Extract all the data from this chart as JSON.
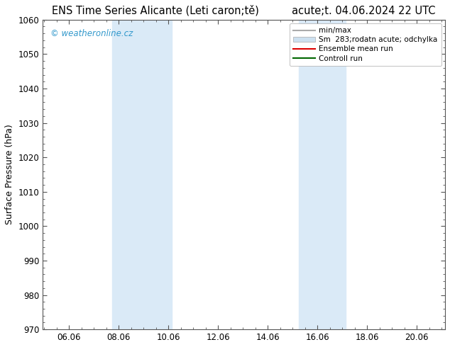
{
  "title": "ENS Time Series Alicante (Leti caron;tě)          acute;t. 04.06.2024 22 UTC",
  "ylabel": "Surface Pressure (hPa)",
  "ylim": [
    970,
    1060
  ],
  "yticks": [
    970,
    980,
    990,
    1000,
    1010,
    1020,
    1030,
    1040,
    1050,
    1060
  ],
  "xlim_start": 5.0,
  "xlim_end": 21.2,
  "xticks": [
    6.06,
    8.06,
    10.06,
    12.06,
    14.06,
    16.06,
    18.06,
    20.06
  ],
  "xtick_labels": [
    "06.06",
    "08.06",
    "10.06",
    "12.06",
    "14.06",
    "16.06",
    "18.06",
    "20.06"
  ],
  "shaded_regions": [
    {
      "x_start": 7.8,
      "x_end": 10.2
    },
    {
      "x_start": 15.3,
      "x_end": 17.2
    }
  ],
  "shaded_color": "#daeaf7",
  "watermark": "© weatheronline.cz",
  "watermark_color": "#3399cc",
  "legend_entries": [
    {
      "label": "min/max",
      "color": "#aaaaaa",
      "lw": 1.5,
      "type": "line"
    },
    {
      "label": "Sm  283;rodatn acute; odchylka",
      "color": "#cce0f0",
      "lw": 8,
      "type": "band"
    },
    {
      "label": "Ensemble mean run",
      "color": "#dd0000",
      "lw": 1.5,
      "type": "line"
    },
    {
      "label": "Controll run",
      "color": "#006600",
      "lw": 1.5,
      "type": "line"
    }
  ],
  "bg_color": "#ffffff",
  "plot_bg_color": "#ffffff",
  "title_fontsize": 10.5,
  "tick_fontsize": 8.5,
  "legend_fontsize": 7.5,
  "ylabel_fontsize": 9
}
